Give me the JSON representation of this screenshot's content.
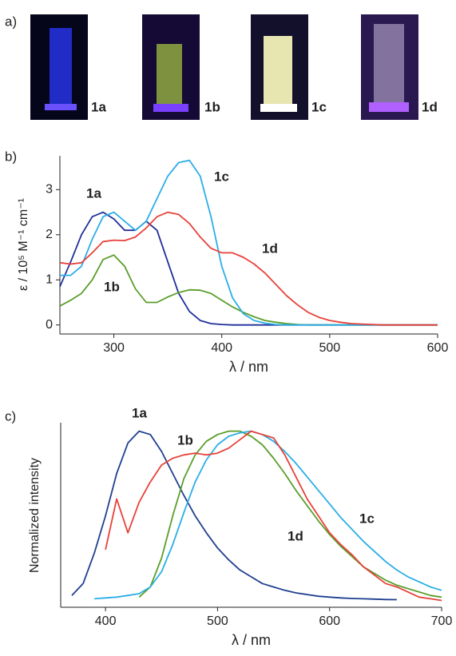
{
  "photo_panel": {
    "panel_label": "a)",
    "samples": [
      "1a",
      "1b",
      "1c",
      "1d"
    ]
  },
  "chart_data": [
    {
      "type": "line",
      "panel_label": "b)",
      "x_label": "λ / nm",
      "y_label": "ε / 10⁵ M⁻¹ cm⁻¹",
      "x": [
        250,
        260,
        270,
        280,
        290,
        300,
        310,
        320,
        330,
        340,
        350,
        360,
        370,
        380,
        390,
        400,
        410,
        420,
        430,
        440,
        450,
        460,
        470,
        480,
        490,
        500,
        510,
        520,
        530,
        540,
        550,
        560,
        570,
        580,
        590,
        600
      ],
      "xlim": [
        250,
        600
      ],
      "xticks": [
        300,
        400,
        500,
        600
      ],
      "ylim": [
        -0.2,
        3.75
      ],
      "yticks": [
        0,
        1,
        2,
        3
      ],
      "grid": false,
      "series": [
        {
          "name": "1a",
          "color": "#1f2f9a",
          "values": [
            0.85,
            1.4,
            2.0,
            2.4,
            2.5,
            2.35,
            2.1,
            2.1,
            2.3,
            2.1,
            1.4,
            0.7,
            0.3,
            0.1,
            0.03,
            0.01,
            0,
            0,
            0,
            0,
            0,
            0,
            0,
            0,
            0,
            0,
            0,
            0,
            0,
            0,
            0,
            0,
            0,
            0,
            0,
            0
          ]
        },
        {
          "name": "1b",
          "color": "#5a9e2a",
          "values": [
            0.42,
            0.55,
            0.7,
            1.0,
            1.45,
            1.55,
            1.3,
            0.8,
            0.5,
            0.5,
            0.62,
            0.72,
            0.78,
            0.77,
            0.7,
            0.55,
            0.4,
            0.28,
            0.18,
            0.1,
            0.06,
            0.03,
            0.01,
            0,
            0,
            0,
            0,
            0,
            0,
            0,
            0,
            0,
            0,
            0,
            0,
            0
          ]
        },
        {
          "name": "1c",
          "color": "#2aaee6",
          "values": [
            1.1,
            1.1,
            1.3,
            1.9,
            2.4,
            2.5,
            2.3,
            2.1,
            2.3,
            2.8,
            3.3,
            3.6,
            3.65,
            3.3,
            2.4,
            1.3,
            0.6,
            0.25,
            0.1,
            0.04,
            0.01,
            0,
            0,
            0,
            0,
            0,
            0,
            0,
            0,
            0,
            0,
            0,
            0,
            0,
            0,
            0
          ]
        },
        {
          "name": "1d",
          "color": "#e8413a",
          "values": [
            1.38,
            1.35,
            1.38,
            1.6,
            1.85,
            1.88,
            1.87,
            1.95,
            2.15,
            2.4,
            2.5,
            2.45,
            2.25,
            1.95,
            1.7,
            1.6,
            1.6,
            1.5,
            1.35,
            1.15,
            0.9,
            0.65,
            0.45,
            0.28,
            0.17,
            0.1,
            0.06,
            0.03,
            0.02,
            0.01,
            0,
            0,
            0,
            0,
            0,
            0
          ]
        }
      ]
    },
    {
      "type": "line",
      "panel_label": "c)",
      "x_label": "λ / nm",
      "y_label": "Normalized intensity",
      "x": [
        360,
        370,
        380,
        390,
        400,
        410,
        420,
        430,
        440,
        450,
        460,
        470,
        480,
        490,
        500,
        510,
        520,
        530,
        540,
        550,
        560,
        570,
        580,
        590,
        600,
        610,
        620,
        630,
        640,
        650,
        660,
        670,
        680,
        690,
        700
      ],
      "xlim": [
        360,
        700
      ],
      "xticks": [
        400,
        500,
        600,
        700
      ],
      "ylim": [
        -0.04,
        1.05
      ],
      "grid": false,
      "series": [
        {
          "name": "1a",
          "color": "#1f3f8f",
          "values": [
            null,
            0.03,
            0.1,
            0.28,
            0.5,
            0.75,
            0.93,
            1.0,
            0.98,
            0.88,
            0.75,
            0.62,
            0.5,
            0.4,
            0.31,
            0.24,
            0.18,
            0.14,
            0.1,
            0.08,
            0.06,
            0.045,
            0.035,
            0.025,
            0.02,
            0.015,
            0.012,
            0.01,
            0.008,
            0.006,
            0.005,
            null,
            null,
            null,
            null
          ]
        },
        {
          "name": "1b",
          "color": "#5a9e2a",
          "values": [
            null,
            null,
            null,
            null,
            null,
            null,
            null,
            0.02,
            0.08,
            0.25,
            0.5,
            0.72,
            0.86,
            0.94,
            0.98,
            1.0,
            1.0,
            0.97,
            0.92,
            0.84,
            0.75,
            0.65,
            0.56,
            0.47,
            0.39,
            0.32,
            0.26,
            0.2,
            0.16,
            0.12,
            0.09,
            0.07,
            0.05,
            0.03,
            0.02
          ]
        },
        {
          "name": "1c",
          "color": "#2aaee6",
          "values": [
            null,
            null,
            null,
            0.01,
            0.015,
            0.02,
            0.03,
            0.04,
            0.08,
            0.17,
            0.33,
            0.52,
            0.7,
            0.83,
            0.92,
            0.97,
            0.99,
            1.0,
            0.98,
            0.94,
            0.88,
            0.81,
            0.73,
            0.65,
            0.57,
            0.49,
            0.42,
            0.35,
            0.29,
            0.23,
            0.18,
            0.14,
            0.11,
            0.08,
            0.06
          ]
        },
        {
          "name": "1d",
          "color": "#e8413a",
          "values": [
            null,
            null,
            null,
            null,
            0.3,
            0.6,
            0.4,
            0.58,
            0.7,
            0.8,
            0.84,
            0.86,
            0.87,
            0.86,
            0.87,
            0.9,
            0.95,
            1.0,
            0.98,
            0.96,
            0.86,
            0.73,
            0.6,
            0.5,
            0.4,
            0.33,
            0.27,
            0.2,
            0.15,
            0.1,
            0.08,
            0.05,
            0.02,
            0.01,
            0
          ]
        }
      ]
    }
  ]
}
